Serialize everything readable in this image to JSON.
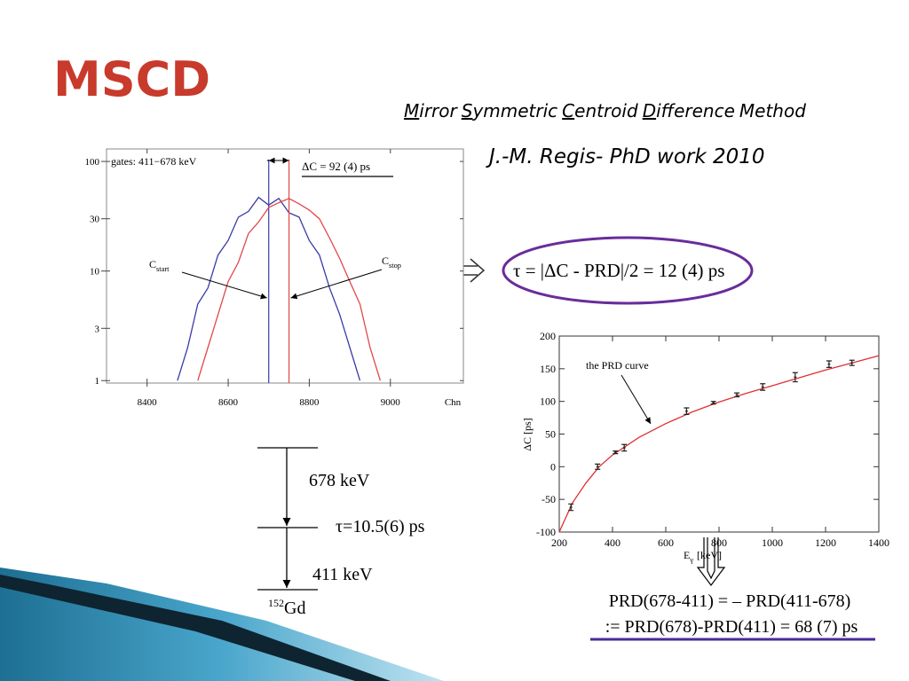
{
  "title": "MSCD",
  "subtitle_words": [
    "Mirror",
    "Symmetric",
    "Centroid",
    "Difference",
    "Method"
  ],
  "author": "J.-M. Regis- PhD work 2010",
  "tau_formula": "τ = |ΔC - PRD|/2 = 12 (4) ps",
  "level_scheme": {
    "gamma1": "678 keV",
    "lifetime": "τ=10.5(6) ps",
    "gamma2": "411 keV",
    "nucleus_mass": "152",
    "nucleus": "Gd"
  },
  "prd_result": [
    "PRD(678-411) = – PRD(411-678)",
    ":= PRD(678)-PRD(411) = 68 (7) ps"
  ],
  "chart_data": [
    {
      "type": "line",
      "log_y": true,
      "xlim": [
        8300,
        9180
      ],
      "ylim": [
        0.95,
        130
      ],
      "xticks": [
        8400,
        8600,
        8800,
        9000
      ],
      "yticks": [
        1,
        3,
        10,
        30,
        100
      ],
      "xlabel": "Chn",
      "annotation": "gates: 411−678 keV",
      "delta_label": "ΔC = 92 (4) ps",
      "start_label": {
        "main": "C",
        "sub": "start"
      },
      "stop_label": {
        "main": "C",
        "sub": "stop"
      },
      "series": [
        {
          "color": "#3a3aa8",
          "centroid": 8700,
          "x": [
            8475,
            8500,
            8525,
            8550,
            8575,
            8600,
            8625,
            8650,
            8675,
            8700,
            8725,
            8750,
            8775,
            8800,
            8825,
            8850,
            8875,
            8900,
            8925
          ],
          "values": [
            1,
            2,
            5,
            7,
            14,
            19,
            31,
            35,
            47,
            40,
            46,
            34,
            31,
            19,
            14,
            7,
            4,
            2,
            1
          ]
        },
        {
          "color": "#e04848",
          "centroid": 8750,
          "x": [
            8525,
            8550,
            8575,
            8600,
            8625,
            8650,
            8675,
            8700,
            8725,
            8750,
            8775,
            8800,
            8825,
            8850,
            8875,
            8900,
            8925,
            8950,
            8975
          ],
          "values": [
            1,
            2,
            4,
            8,
            12,
            22,
            28,
            38,
            42,
            46,
            41,
            36,
            30,
            20,
            13,
            8,
            5,
            2,
            1
          ]
        }
      ]
    },
    {
      "type": "scatter",
      "xlim": [
        200,
        1400
      ],
      "ylim": [
        -100,
        200
      ],
      "xticks": [
        200,
        400,
        600,
        800,
        1000,
        1200,
        1400
      ],
      "yticks": [
        -100,
        -50,
        0,
        50,
        100,
        150,
        200
      ],
      "ylabel": "ΔC [ps]",
      "xlabel": {
        "main": "E",
        "sub": "γ",
        "rest": "[keV]"
      },
      "annotation": "the PRD curve",
      "series": [
        {
          "style": "line",
          "color": "#e03030",
          "x": [
            200,
            250,
            300,
            350,
            400,
            500,
            600,
            700,
            800,
            900,
            1000,
            1100,
            1200,
            1300,
            1400
          ],
          "values": [
            -100,
            -55,
            -25,
            0,
            18,
            45,
            66,
            84,
            99,
            112,
            124,
            136,
            148,
            159,
            170
          ]
        },
        {
          "style": "errorbar",
          "color": "#222222",
          "x": [
            244,
            344,
            411,
            444,
            678,
            779,
            867,
            964,
            1086,
            1213,
            1299
          ],
          "values": [
            -62,
            0,
            22,
            29,
            85,
            98,
            110,
            122,
            137,
            157,
            159
          ],
          "errors": [
            5,
            4,
            2,
            5,
            5,
            2,
            3,
            5,
            7,
            5,
            4
          ]
        }
      ]
    }
  ]
}
